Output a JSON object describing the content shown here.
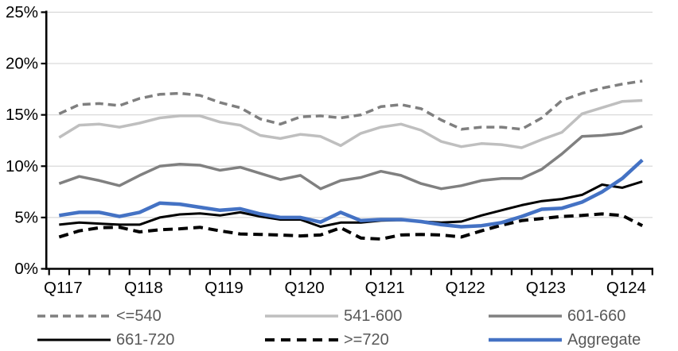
{
  "chart_data": {
    "type": "line",
    "title": "",
    "unit": "%",
    "grid": true,
    "legend_position": "bottom",
    "legend_text_color": "#595959",
    "grid_color": "#D9D9D9",
    "axis_color": "#000000",
    "x_tick_labels": [
      "Q117",
      "Q118",
      "Q119",
      "Q120",
      "Q121",
      "Q122",
      "Q123",
      "Q124"
    ],
    "y_tick_labels": [
      "0%",
      "5%",
      "10%",
      "15%",
      "20%",
      "25%"
    ],
    "ylim": [
      0,
      25
    ],
    "y_step": 5,
    "n_points": 30,
    "quarters_per_label": 4,
    "draw_order": [
      1,
      0,
      2,
      4,
      3,
      5
    ],
    "series": [
      {
        "name": "<=540",
        "color": "#7F7F7F",
        "line_style": "dashed",
        "width": 3.5,
        "values": [
          15.1,
          16.0,
          16.1,
          15.9,
          16.6,
          17.0,
          17.1,
          16.9,
          16.2,
          15.7,
          14.6,
          14.1,
          14.8,
          14.9,
          14.7,
          15.0,
          15.8,
          16.0,
          15.6,
          14.5,
          13.6,
          13.8,
          13.8,
          13.6,
          14.7,
          16.4,
          17.1,
          17.6,
          18.0,
          18.3
        ]
      },
      {
        "name": "541-600",
        "color": "#BFBFBF",
        "line_style": "solid",
        "width": 3.5,
        "values": [
          12.8,
          14.0,
          14.1,
          13.8,
          14.2,
          14.7,
          14.9,
          14.9,
          14.3,
          14.0,
          13.0,
          12.7,
          13.1,
          12.9,
          12.0,
          13.2,
          13.8,
          14.1,
          13.5,
          12.4,
          11.9,
          12.2,
          12.1,
          11.8,
          12.6,
          13.3,
          15.1,
          15.7,
          16.3,
          16.4
        ]
      },
      {
        "name": "601-660",
        "color": "#808080",
        "line_style": "solid",
        "width": 3.5,
        "values": [
          8.3,
          9.0,
          8.6,
          8.1,
          9.1,
          10.0,
          10.2,
          10.1,
          9.6,
          9.9,
          9.3,
          8.7,
          9.1,
          7.8,
          8.6,
          8.9,
          9.5,
          9.1,
          8.3,
          7.8,
          8.1,
          8.6,
          8.8,
          8.8,
          9.7,
          11.2,
          12.9,
          13.0,
          13.2,
          13.9
        ]
      },
      {
        "name": "661-720",
        "color": "#000000",
        "line_style": "solid",
        "width": 3,
        "values": [
          4.3,
          4.5,
          4.4,
          4.3,
          4.3,
          5.0,
          5.3,
          5.4,
          5.2,
          5.5,
          5.1,
          4.8,
          4.8,
          4.1,
          4.5,
          4.5,
          4.7,
          4.75,
          4.6,
          4.5,
          4.6,
          5.2,
          5.7,
          6.2,
          6.6,
          6.8,
          7.2,
          8.2,
          7.9,
          8.5
        ]
      },
      {
        "name": ">=720",
        "color": "#000000",
        "line_style": "dashed",
        "width": 4,
        "values": [
          3.1,
          3.7,
          4.0,
          4.05,
          3.6,
          3.8,
          3.9,
          4.05,
          3.7,
          3.4,
          3.35,
          3.3,
          3.2,
          3.3,
          4.0,
          3.0,
          2.9,
          3.3,
          3.35,
          3.3,
          3.1,
          3.7,
          4.25,
          4.7,
          4.9,
          5.1,
          5.2,
          5.35,
          5.2,
          4.2
        ]
      },
      {
        "name": "Aggregate",
        "color": "#4472C4",
        "line_style": "solid",
        "width": 4.5,
        "values": [
          5.2,
          5.5,
          5.5,
          5.1,
          5.5,
          6.4,
          6.3,
          6.0,
          5.7,
          5.85,
          5.35,
          5.0,
          5.0,
          4.55,
          5.5,
          4.7,
          4.8,
          4.8,
          4.6,
          4.3,
          4.1,
          4.2,
          4.5,
          5.1,
          5.8,
          5.9,
          6.5,
          7.5,
          8.8,
          10.6
        ]
      }
    ]
  }
}
